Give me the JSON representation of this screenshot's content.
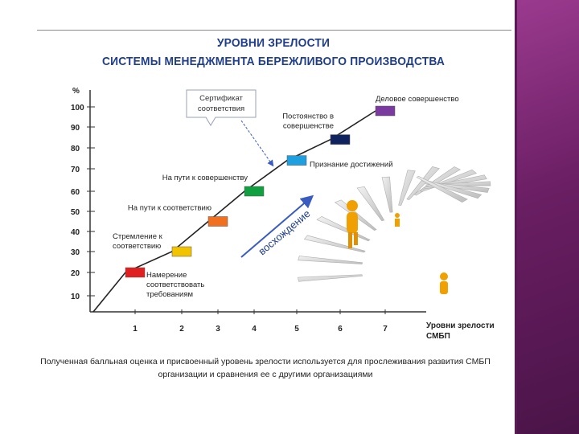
{
  "title": {
    "line1": "УРОВНИ ЗРЕЛОСТИ",
    "line2": "СИСТЕМЫ МЕНЕДЖМЕНТА БЕРЕЖЛИВОГО ПРОИЗВОДСТВА"
  },
  "caption": {
    "line1": "Полученная балльная оценка и присвоенный уровень зрелости используется для прослеживания развития СМБП",
    "line2": "организации и сравнения ее с другими организациями"
  },
  "callout": {
    "line1": "Сертификат",
    "line2": "соответствия"
  },
  "arrow_label": "восхождение",
  "colors": {
    "axis": "#333333",
    "line": "#222222",
    "title": "#1f3d8a",
    "sidebar": "#7b2a73",
    "arrow": "#3a5bbf"
  },
  "chart_data": {
    "type": "line",
    "ylabel": "%",
    "xlabel": "Уровни зрелости СМБП",
    "xlabel_lines": [
      "Уровни зрелости",
      "СМБП"
    ],
    "y_ticks": [
      10,
      20,
      30,
      40,
      50,
      60,
      70,
      80,
      90,
      100
    ],
    "x_ticks": [
      1,
      2,
      3,
      4,
      5,
      6,
      7
    ],
    "ylim": [
      0,
      105
    ],
    "xlim": [
      0,
      8
    ],
    "line_path": [
      [
        0.2,
        0
      ],
      [
        1,
        20
      ],
      [
        2,
        30
      ],
      [
        3,
        45
      ],
      [
        4,
        60
      ],
      [
        5,
        74
      ],
      [
        6,
        84
      ],
      [
        7,
        98
      ]
    ],
    "levels": [
      {
        "x": 1,
        "y": 20,
        "color": "#e02020",
        "label_lines": [
          "Намерение",
          "соответствовать",
          "требованиям"
        ],
        "label_side": "below-right"
      },
      {
        "x": 2,
        "y": 30,
        "color": "#f2c400",
        "label_lines": [
          "Стремление к",
          "соответствию"
        ],
        "label_side": "left"
      },
      {
        "x": 3,
        "y": 45,
        "color": "#f07020",
        "label_lines": [
          "На пути к соответствию"
        ],
        "label_side": "above-left"
      },
      {
        "x": 4,
        "y": 60,
        "color": "#10a040",
        "label_lines": [
          "На пути к совершенству"
        ],
        "label_side": "above-left"
      },
      {
        "x": 5,
        "y": 74,
        "color": "#1ea0e0",
        "label_lines": [
          "Признание достижений"
        ],
        "label_side": "right"
      },
      {
        "x": 6,
        "y": 84,
        "color": "#10235e",
        "label_lines": [
          "Постоянство в",
          "совершенстве"
        ],
        "label_side": "above-left"
      },
      {
        "x": 7,
        "y": 98,
        "color": "#7a3aa0",
        "label_lines": [
          "Деловое совершенство"
        ],
        "label_side": "above"
      }
    ]
  }
}
